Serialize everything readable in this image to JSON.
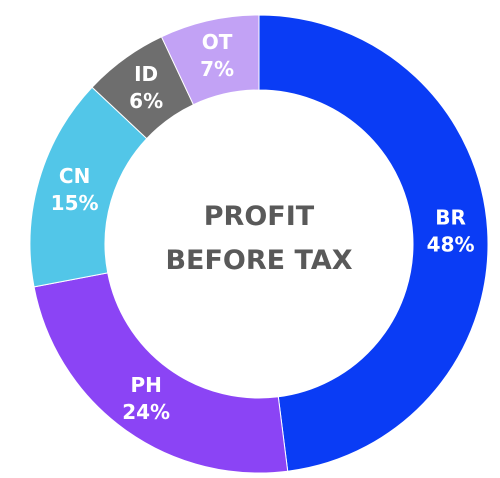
{
  "chart_data": {
    "type": "donut",
    "title": "PROFIT BEFORE TAX",
    "categories": [
      "BR",
      "PH",
      "CN",
      "ID",
      "OT"
    ],
    "values": [
      48,
      24,
      15,
      6,
      7
    ],
    "value_labels": [
      "48%",
      "24%",
      "15%",
      "6%",
      "7%"
    ],
    "colors": [
      "#0a3cf5",
      "#8b44f5",
      "#52c6e8",
      "#6e6e6e",
      "#c2a2f5"
    ]
  }
}
